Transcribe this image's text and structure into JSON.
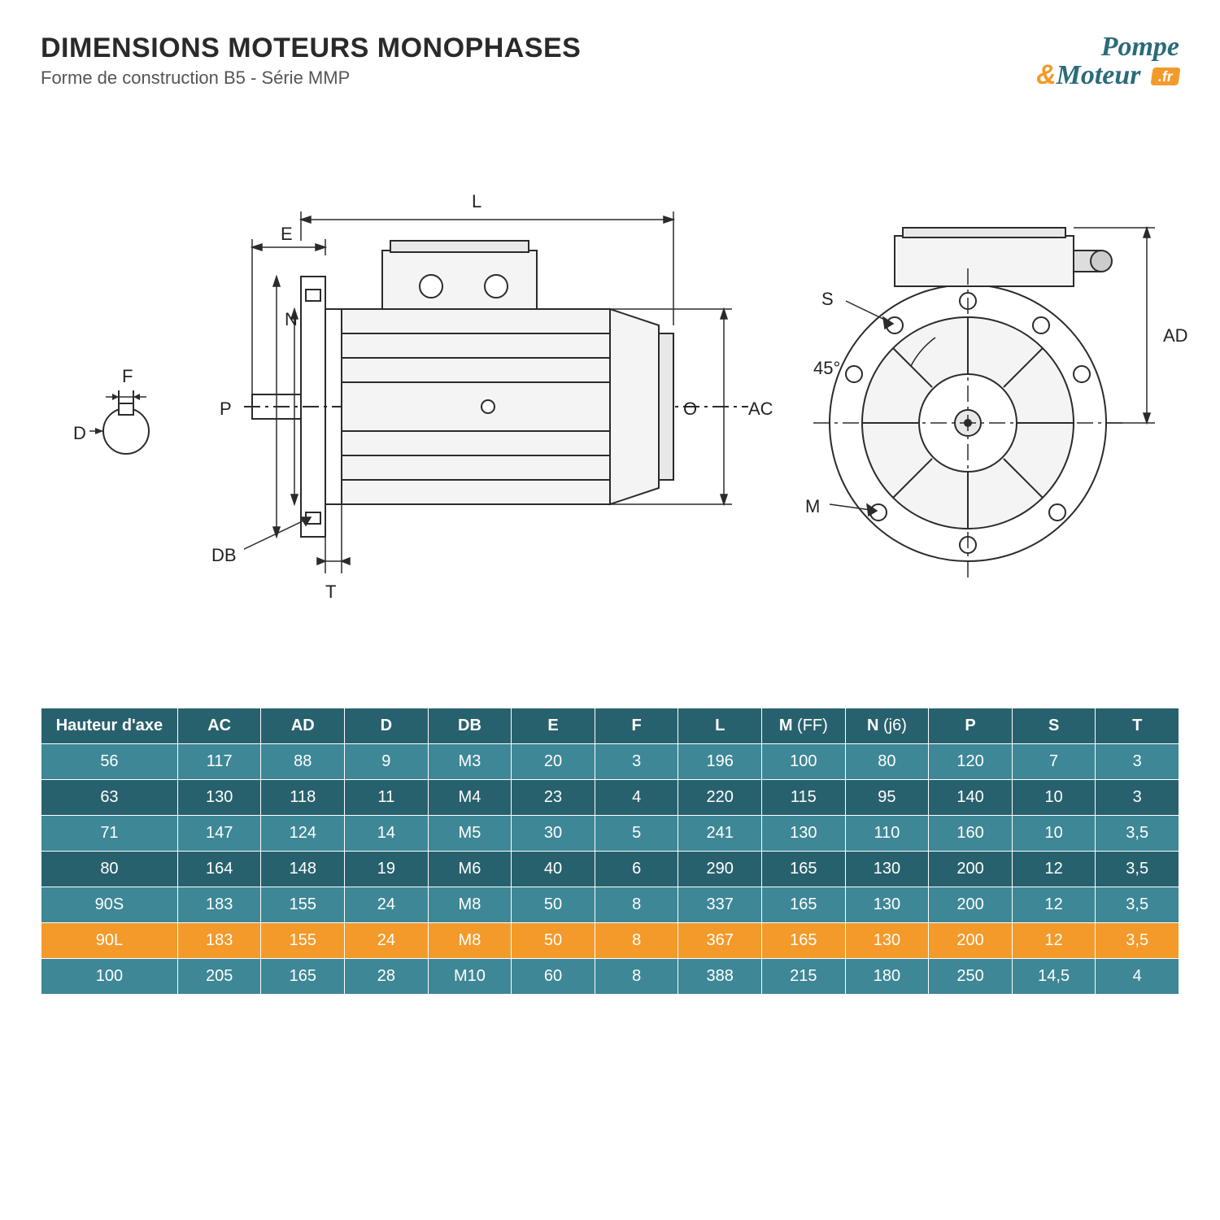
{
  "title": "DIMENSIONS MOTEURS MONOPHASES",
  "subtitle": "Forme de construction B5 - Série MMP",
  "logo": {
    "line1": "Pompe",
    "amp": "&",
    "line2": "Moteur",
    "badge": ".fr"
  },
  "colors": {
    "header_bg": "#28616e",
    "row_light": "#3e8796",
    "row_dark": "#28616e",
    "highlight": "#f39a2b",
    "text": "#ffffff",
    "title": "#2a2a2a",
    "logo_teal": "#2a6b7a",
    "logo_orange": "#f39a2b",
    "diagram_stroke": "#2b2b2b"
  },
  "font": {
    "title_size": 34,
    "subtitle_size": 22,
    "table_size": 20,
    "label_size": 22
  },
  "diagram_labels": {
    "L": "L",
    "E": "E",
    "F": "F",
    "D": "D",
    "P": "P",
    "N": "N",
    "DB": "DB",
    "T": "T",
    "O": "O",
    "AC": "AC",
    "S": "S",
    "angle": "45°",
    "M": "M",
    "AD": "AD"
  },
  "table": {
    "columns": [
      "Hauteur d'axe",
      "AC",
      "AD",
      "D",
      "DB",
      "E",
      "F",
      "L",
      "M (FF)",
      "N (j6)",
      "P",
      "S",
      "T"
    ],
    "rows": [
      [
        "56",
        "117",
        "88",
        "9",
        "M3",
        "20",
        "3",
        "196",
        "100",
        "80",
        "120",
        "7",
        "3"
      ],
      [
        "63",
        "130",
        "118",
        "11",
        "M4",
        "23",
        "4",
        "220",
        "115",
        "95",
        "140",
        "10",
        "3"
      ],
      [
        "71",
        "147",
        "124",
        "14",
        "M5",
        "30",
        "5",
        "241",
        "130",
        "110",
        "160",
        "10",
        "3,5"
      ],
      [
        "80",
        "164",
        "148",
        "19",
        "M6",
        "40",
        "6",
        "290",
        "165",
        "130",
        "200",
        "12",
        "3,5"
      ],
      [
        "90S",
        "183",
        "155",
        "24",
        "M8",
        "50",
        "8",
        "337",
        "165",
        "130",
        "200",
        "12",
        "3,5"
      ],
      [
        "90L",
        "183",
        "155",
        "24",
        "M8",
        "50",
        "8",
        "367",
        "165",
        "130",
        "200",
        "12",
        "3,5"
      ],
      [
        "100",
        "205",
        "165",
        "28",
        "M10",
        "60",
        "8",
        "388",
        "215",
        "180",
        "250",
        "14,5",
        "4"
      ]
    ],
    "highlight_row_index": 5,
    "row_alt_classes": [
      "rowA",
      "rowB"
    ]
  }
}
